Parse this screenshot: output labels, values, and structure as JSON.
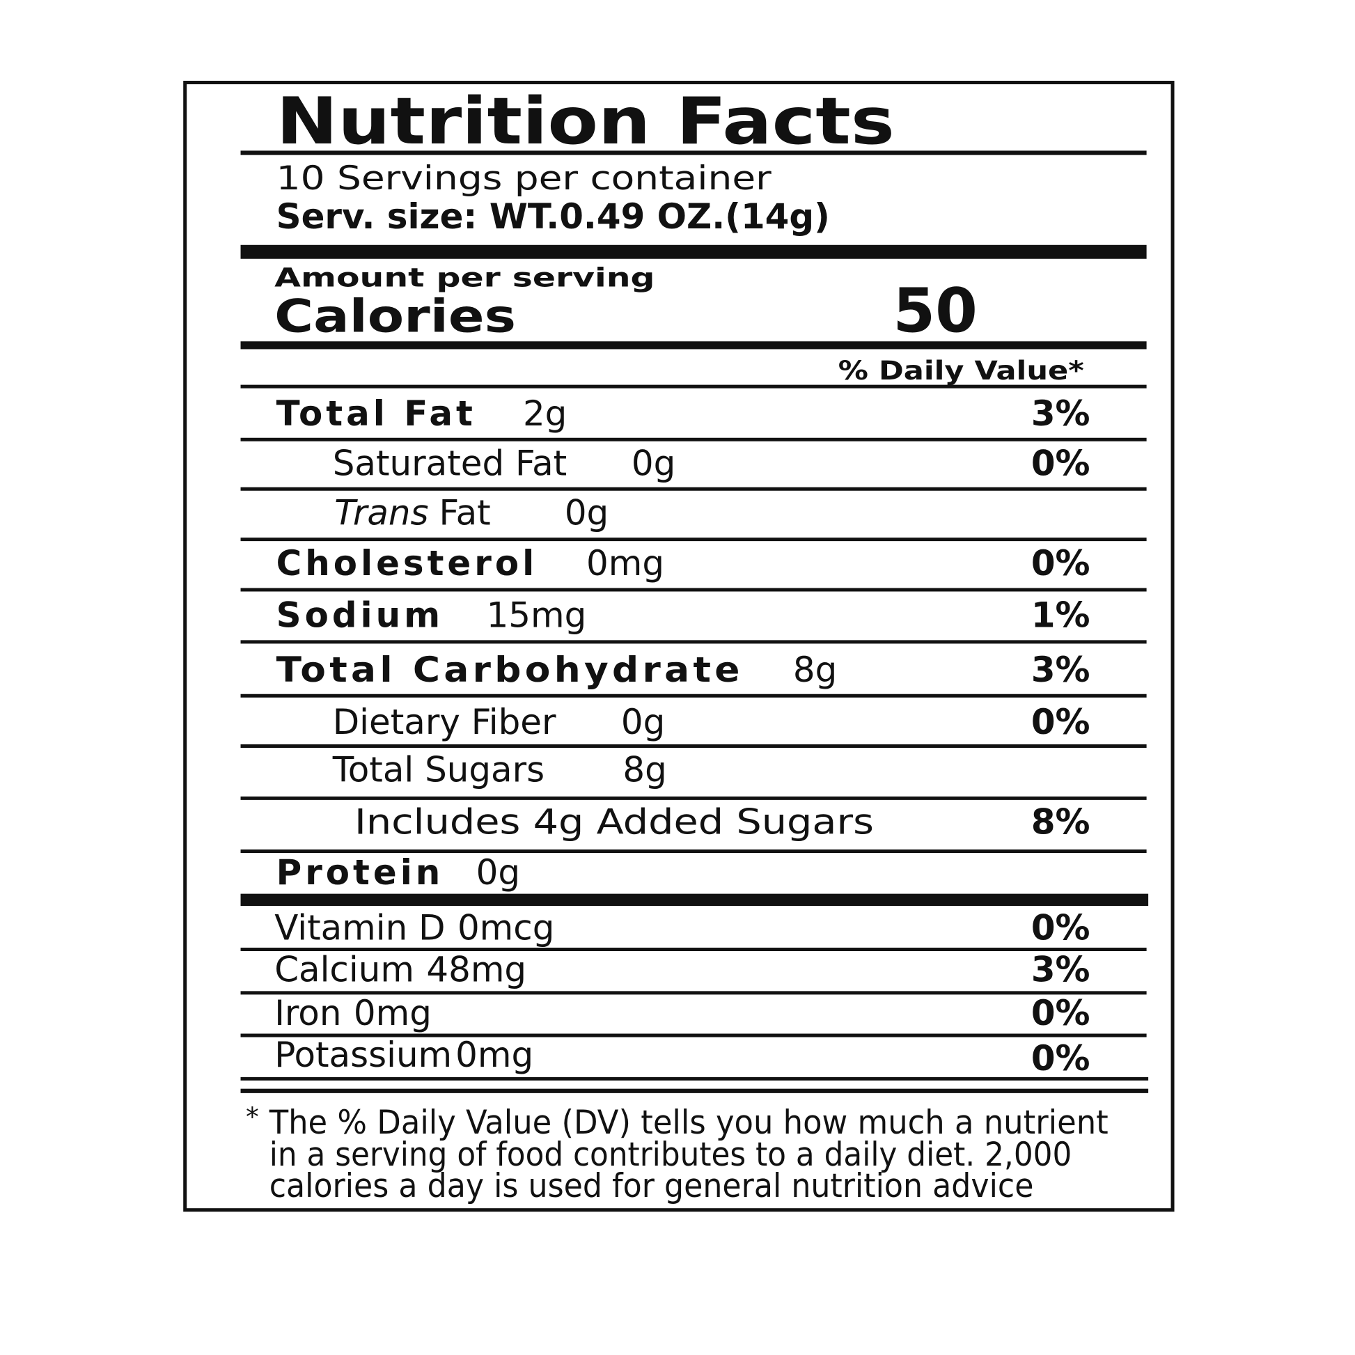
{
  "title": "Nutrition Facts",
  "servings": "10 Servings per container",
  "serving_size": {
    "label": "Serv. size:",
    "value": "WT.0.49 OZ.(14g)"
  },
  "amount_per_serving": "Amount per serving",
  "calories": {
    "label": "Calories",
    "value": "50"
  },
  "daily_value_header": "% Daily Value*",
  "nutrients": [
    {
      "name": "Total Fat",
      "amount": "2g",
      "dv": "3%"
    },
    {
      "name": "Saturated Fat",
      "amount": "0g",
      "dv": "0%"
    },
    {
      "name_italic": "Trans",
      "name": "Fat",
      "amount": "0g"
    },
    {
      "name": "Cholesterol",
      "amount": "0mg",
      "dv": "0%"
    },
    {
      "name": "Sodium",
      "amount": "15mg",
      "dv": "1%"
    },
    {
      "name": "Total Carbohydrate",
      "amount": "8g",
      "dv": "3%"
    },
    {
      "name": "Dietary Fiber",
      "amount": "0g",
      "dv": "0%"
    },
    {
      "name": "Total Sugars",
      "amount": "8g"
    },
    {
      "name": "Includes 4g Added Sugars",
      "dv": "8%"
    },
    {
      "name": "Protein",
      "amount": "0g"
    }
  ],
  "vitamins": [
    {
      "name": "Vitamin D",
      "amount": "0mcg",
      "dv": "0%"
    },
    {
      "name": "Calcium",
      "amount": "48mg",
      "dv": "3%"
    },
    {
      "name": "Iron",
      "amount": "0mg",
      "dv": "0%"
    },
    {
      "name": "Potassium",
      "amount": "0mg",
      "dv": "0%"
    }
  ],
  "footnote_marker": "*",
  "footnote": [
    "The % Daily Value (DV) tells you how much a nutrient",
    "in a serving of food contributes to a daily diet. 2,000",
    "calories a day is used for general nutrition advice"
  ]
}
